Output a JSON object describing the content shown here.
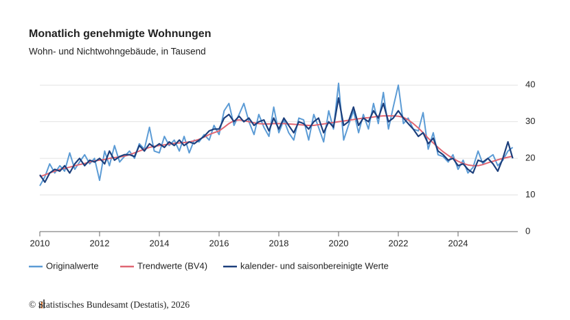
{
  "chart_data": {
    "type": "line",
    "title": "Monatlich genehmigte Wohnungen",
    "subtitle": "Wohn- und Nichtwohngebäude, in Tausend",
    "source": "© Statistisches Bundesamt (Destatis), 2026",
    "x": [
      2010,
      2010.17,
      2010.33,
      2010.5,
      2010.67,
      2010.83,
      2011,
      2011.17,
      2011.33,
      2011.5,
      2011.67,
      2011.83,
      2012,
      2012.17,
      2012.33,
      2012.5,
      2012.67,
      2012.83,
      2013,
      2013.17,
      2013.33,
      2013.5,
      2013.67,
      2013.83,
      2014,
      2014.17,
      2014.33,
      2014.5,
      2014.67,
      2014.83,
      2015,
      2015.17,
      2015.33,
      2015.5,
      2015.67,
      2015.83,
      2016,
      2016.17,
      2016.33,
      2016.5,
      2016.67,
      2016.83,
      2017,
      2017.17,
      2017.33,
      2017.5,
      2017.67,
      2017.83,
      2018,
      2018.17,
      2018.33,
      2018.5,
      2018.67,
      2018.83,
      2019,
      2019.17,
      2019.33,
      2019.5,
      2019.67,
      2019.83,
      2020,
      2020.17,
      2020.33,
      2020.5,
      2020.67,
      2020.83,
      2021,
      2021.17,
      2021.33,
      2021.5,
      2021.67,
      2021.83,
      2022,
      2022.17,
      2022.33,
      2022.5,
      2022.67,
      2022.83,
      2023,
      2023.17,
      2023.33,
      2023.5,
      2023.67,
      2023.83,
      2024,
      2024.17,
      2024.33,
      2024.5,
      2024.67,
      2024.83,
      2025,
      2025.17,
      2025.33,
      2025.5,
      2025.67,
      2025.83
    ],
    "series": [
      {
        "name": "Originalwerte",
        "color": "#5b9bd5",
        "width": 2,
        "values": [
          12.5,
          15,
          18.5,
          16,
          18,
          16.5,
          21.5,
          17,
          19,
          21,
          18.5,
          20,
          14,
          22,
          18,
          23.5,
          19,
          20.5,
          22,
          20,
          24,
          22.5,
          28.5,
          22,
          21.5,
          26,
          23.5,
          25,
          22,
          26,
          21.5,
          25,
          24.5,
          26.5,
          25,
          29,
          26.5,
          33,
          35,
          29,
          32,
          35,
          30,
          26.5,
          32,
          28.5,
          26,
          34,
          27,
          30.5,
          27,
          25,
          31,
          30.5,
          25,
          32,
          28.5,
          24.5,
          33,
          28,
          40.5,
          25,
          29,
          33,
          27,
          32,
          28,
          35,
          29.5,
          38,
          28,
          34,
          40,
          29.5,
          31,
          28,
          27.5,
          32.5,
          22.5,
          27,
          21,
          20.5,
          19,
          21,
          17,
          19.5,
          16,
          17.5,
          22,
          18.5,
          20,
          21,
          18,
          19.5,
          22,
          23
        ]
      },
      {
        "name": "Trendwerte (BV4)",
        "color": "#e06672",
        "width": 2,
        "values": [
          15,
          15.5,
          16,
          16.5,
          17,
          17.3,
          17.6,
          18,
          18.3,
          18.6,
          19,
          19.3,
          19.5,
          19.7,
          20,
          20.2,
          20.4,
          20.6,
          21,
          21.5,
          22,
          22.5,
          23,
          23.3,
          23.5,
          23.7,
          23.9,
          24.1,
          24.2,
          24.3,
          24.5,
          24.8,
          25.2,
          25.8,
          26.5,
          27,
          27.5,
          28.5,
          29.5,
          30.3,
          30.5,
          30.3,
          30,
          29.7,
          29.5,
          29.4,
          29.4,
          29.5,
          29.5,
          29.5,
          29.4,
          29.3,
          29.2,
          29.1,
          29,
          29,
          29.2,
          29.4,
          29.6,
          29.8,
          30,
          30.2,
          30.4,
          30.6,
          30.8,
          31,
          31.1,
          31.3,
          31.5,
          31.6,
          31.6,
          31.6,
          31.5,
          31.2,
          30.5,
          29.5,
          28.3,
          27,
          25.5,
          24.2,
          23,
          21.8,
          20.8,
          20,
          19.2,
          18.6,
          18.2,
          18,
          18,
          18.3,
          18.8,
          19.2,
          19.6,
          20,
          20.3,
          20.6
        ]
      },
      {
        "name": "kalender- und saisonbereinigte Werte",
        "color": "#1c3f7c",
        "width": 2.2,
        "values": [
          15.5,
          13.5,
          16,
          17,
          16.5,
          18,
          16,
          18.5,
          20,
          18,
          19.5,
          19,
          20,
          18.5,
          22,
          19.5,
          20.5,
          21,
          21,
          20.5,
          23.5,
          22,
          24,
          23,
          24,
          23,
          24.5,
          23.5,
          25,
          23.5,
          24.5,
          24,
          25,
          26,
          27.5,
          28,
          28,
          31,
          32,
          30,
          31.5,
          30,
          31,
          29,
          30,
          30.5,
          27.5,
          31,
          28,
          31,
          29,
          27,
          30,
          29.5,
          28,
          30,
          31,
          27,
          30,
          28.5,
          36.5,
          29,
          30,
          34,
          29,
          31,
          30,
          33,
          31,
          35,
          30,
          31,
          33,
          31,
          29.5,
          28,
          26,
          27,
          24,
          25.5,
          22,
          21,
          19.5,
          20,
          18,
          18.5,
          17,
          16,
          19.5,
          19,
          20,
          18.5,
          16.5,
          20,
          24.5,
          20
        ]
      }
    ],
    "xlim": [
      2010,
      2026
    ],
    "xticks": [
      2010,
      2012,
      2014,
      2016,
      2018,
      2020,
      2022,
      2024
    ],
    "ylim": [
      0,
      45
    ],
    "yticks": [
      0,
      10,
      20,
      30,
      40
    ],
    "grid": true
  }
}
